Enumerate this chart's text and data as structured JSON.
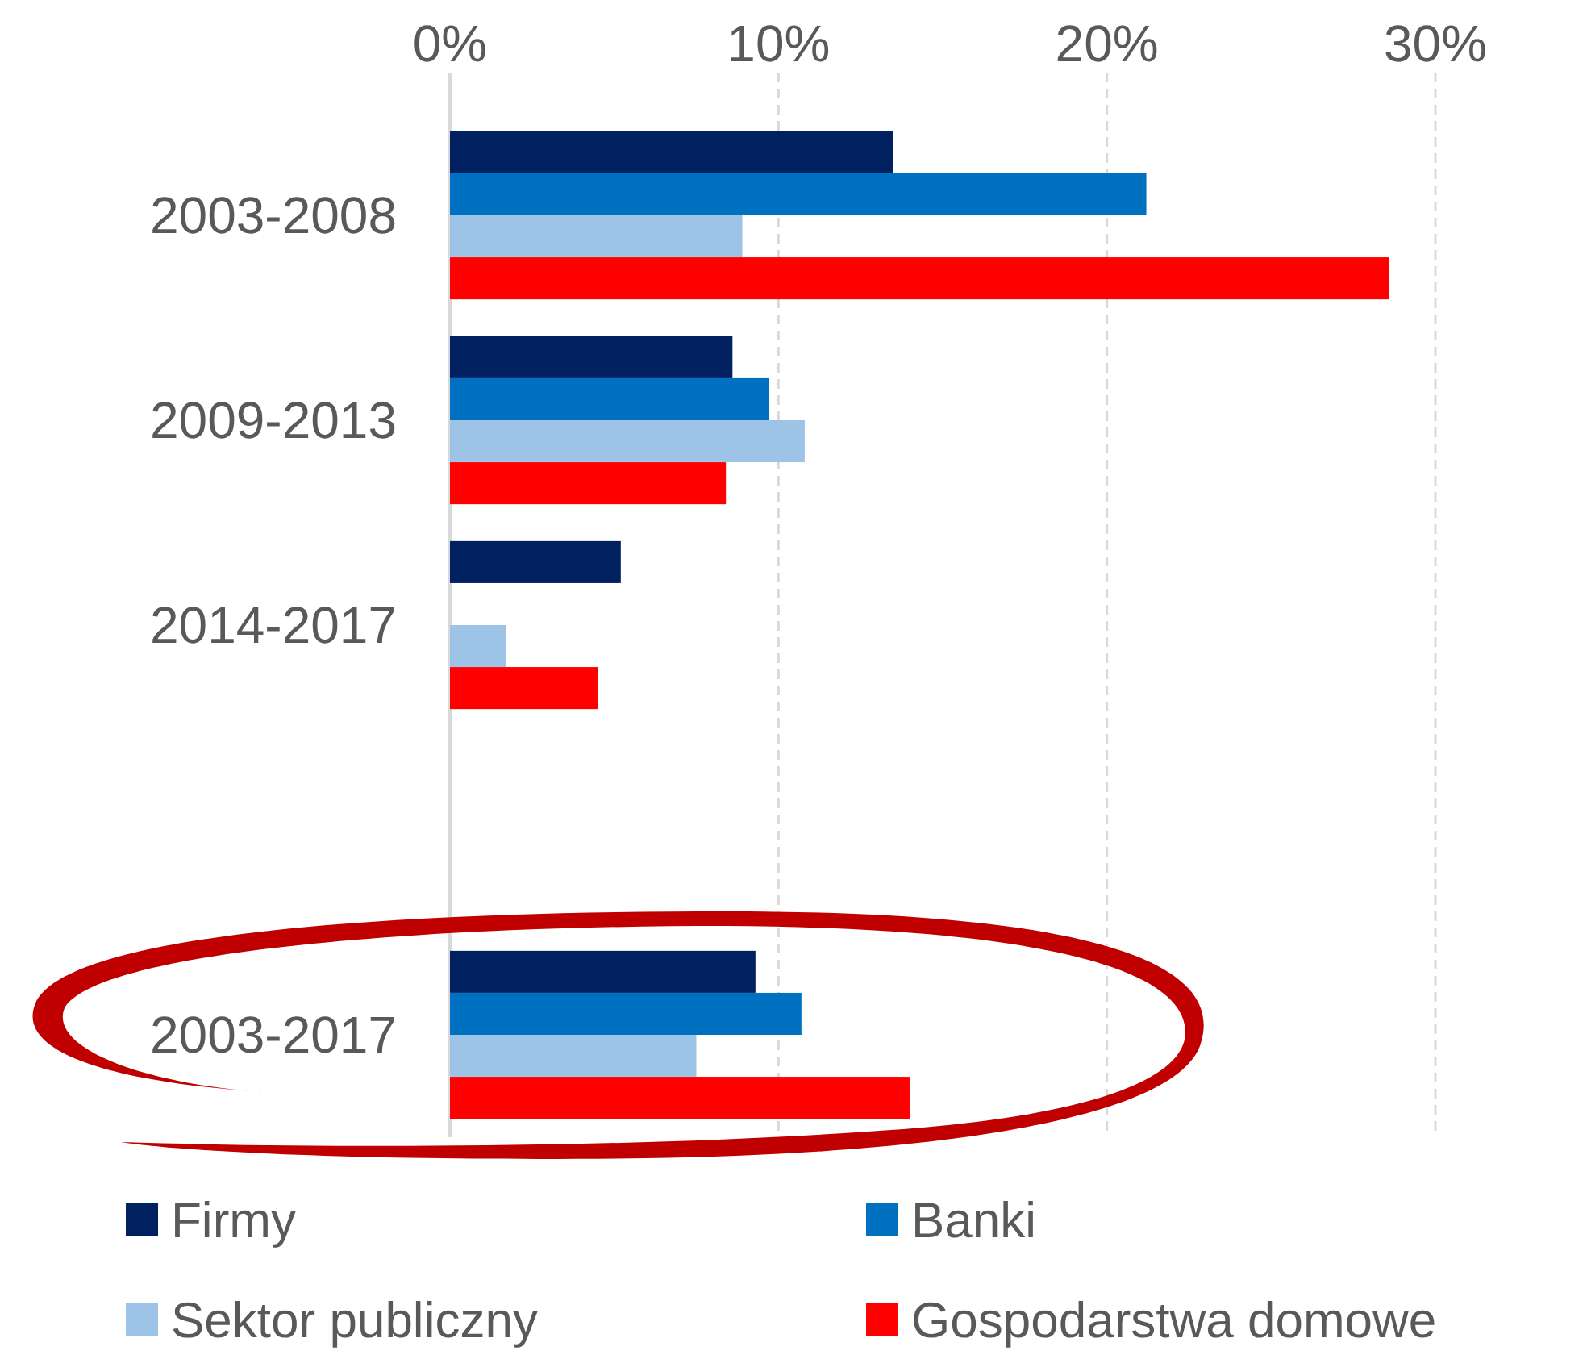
{
  "chart_data": {
    "type": "bar",
    "orientation": "horizontal",
    "categories": [
      "2003-2008",
      "2009-2013",
      "2014-2017",
      null,
      "2003-2017"
    ],
    "series": [
      {
        "name": "Firmy",
        "color": "#002060",
        "values": [
          13.5,
          8.6,
          5.2,
          null,
          9.3
        ]
      },
      {
        "name": "Banki",
        "color": "#0070c0",
        "values": [
          21.2,
          9.7,
          null,
          null,
          10.7
        ]
      },
      {
        "name": "Sektor publiczny",
        "color": "#9dc3e6",
        "values": [
          8.9,
          10.8,
          1.7,
          null,
          7.5
        ]
      },
      {
        "name": "Gospodarstwa domowe",
        "color": "#ff0000",
        "values": [
          28.6,
          8.4,
          4.5,
          null,
          14.0
        ]
      }
    ],
    "xlim": [
      0,
      30
    ],
    "xticks": [
      {
        "value": 0,
        "label": "0%"
      },
      {
        "value": 10,
        "label": "10%"
      },
      {
        "value": 20,
        "label": "20%"
      },
      {
        "value": 30,
        "label": "30%"
      }
    ],
    "grid": "x",
    "legend": "bottom"
  }
}
